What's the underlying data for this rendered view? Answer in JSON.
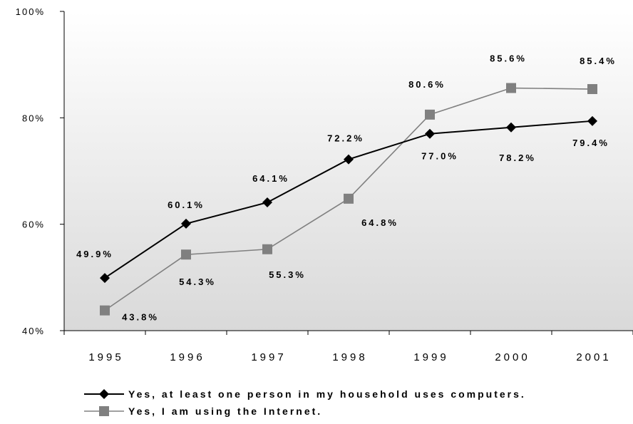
{
  "chart_data": {
    "type": "line",
    "title": "",
    "xlabel": "",
    "ylabel": "",
    "categories": [
      "1995",
      "1996",
      "1997",
      "1998",
      "1999",
      "2000",
      "2001"
    ],
    "ylim": [
      40,
      100
    ],
    "yticks": [
      "40%",
      "60%",
      "80%",
      "100%"
    ],
    "ytick_values": [
      40,
      60,
      80,
      100
    ],
    "grid": false,
    "legend_position": "bottom",
    "series": [
      {
        "name": "Yes, at least one person in my household uses computers.",
        "values": [
          49.9,
          60.1,
          64.1,
          72.2,
          77.0,
          78.2,
          79.4
        ],
        "labels": [
          "49.9%",
          "60.1%",
          "64.1%",
          "72.2%",
          "77.0%",
          "78.2%",
          "79.4%"
        ],
        "color": "#000000",
        "marker": "diamond"
      },
      {
        "name": "Yes, I am using the Internet.",
        "values": [
          43.8,
          54.3,
          55.3,
          64.8,
          80.6,
          85.6,
          85.4
        ],
        "labels": [
          "43.8%",
          "54.3%",
          "55.3%",
          "64.8%",
          "80.6%",
          "85.6%",
          "85.4%"
        ],
        "color": "#808080",
        "marker": "square"
      }
    ]
  }
}
